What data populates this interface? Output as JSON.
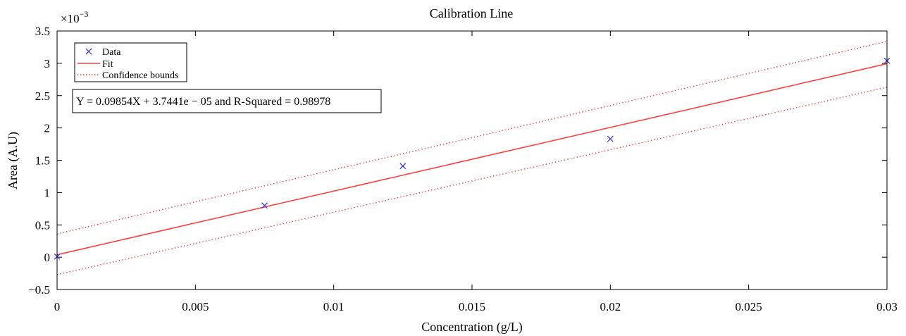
{
  "chart_data": {
    "type": "scatter",
    "title": "Calibration Line",
    "xlabel": "Concentration (g/L)",
    "ylabel": "Area (A.U)",
    "y_multiplier": "×10",
    "y_multiplier_exp": "−3",
    "xlim": [
      0,
      0.03
    ],
    "ylim": [
      -0.5,
      3.5
    ],
    "xticks": [
      0,
      0.005,
      0.01,
      0.015,
      0.02,
      0.025,
      0.03
    ],
    "xtick_labels": [
      "0",
      "0.005",
      "0.01",
      "0.015",
      "0.02",
      "0.025",
      "0.03"
    ],
    "yticks": [
      -0.5,
      0,
      0.5,
      1,
      1.5,
      2,
      2.5,
      3,
      3.5
    ],
    "ytick_labels": [
      "−0.5",
      "0",
      "0.5",
      "1",
      "1.5",
      "2",
      "2.5",
      "3",
      "3.5"
    ],
    "grid": false,
    "legend_position": "top-left",
    "series": [
      {
        "name": "Data",
        "kind": "marker",
        "color": "#3b3bdb",
        "x": [
          0,
          0.0075,
          0.0125,
          0.02,
          0.03
        ],
        "y": [
          0.01,
          0.8,
          1.41,
          1.83,
          3.04
        ]
      },
      {
        "name": "Fit",
        "kind": "line",
        "color": "#ff4040",
        "x": [
          0,
          0.03
        ],
        "y": [
          0.037441,
          2.993641
        ]
      },
      {
        "name": "Confidence bounds",
        "kind": "dotted",
        "color": "#ff4040",
        "x": [
          0,
          0.03
        ],
        "y_upper": [
          0.36,
          3.34
        ],
        "y_lower": [
          -0.27,
          2.63
        ]
      }
    ],
    "annotation": "Y = 0.09854X + 3.7441e − 05 and R-Squared = 0.98978"
  }
}
